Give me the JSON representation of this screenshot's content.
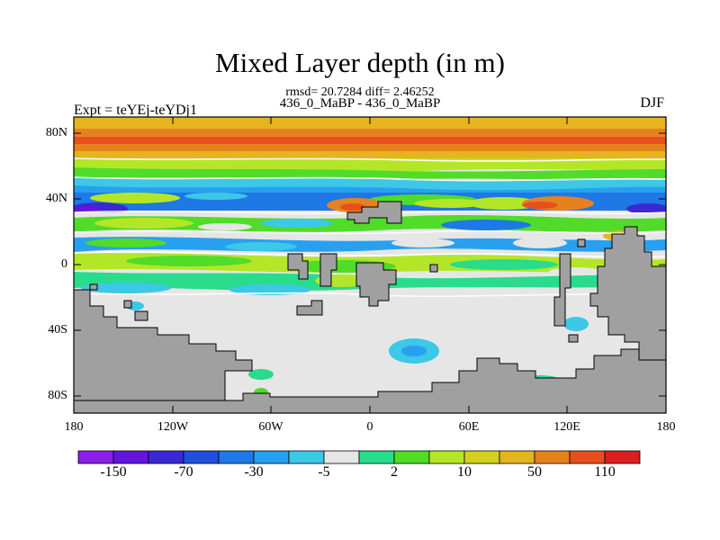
{
  "title": "Mixed Layer depth (in m)",
  "stats_line": "rmsd= 20.7284 diff= 2.46252",
  "comparison_line": "436_0_MaBP - 436_0_MaBP",
  "experiment_label": "Expt = teYEj-teYDj1",
  "season_label": "DJF",
  "map": {
    "lat_ticks": [
      "80N",
      "40N",
      "0",
      "40S",
      "80S"
    ],
    "lon_ticks": [
      "180",
      "120W",
      "60W",
      "0",
      "60E",
      "120E",
      "180"
    ],
    "land_color": "#a0a0a0",
    "lon_range": [
      -180,
      180
    ],
    "lat_range": [
      -90,
      90
    ]
  },
  "colorbar": {
    "colors": [
      "#8c1ee6",
      "#6414dc",
      "#3c28d2",
      "#1e50dc",
      "#1e78e6",
      "#28a0f0",
      "#3cc8e6",
      "#e6e6e6",
      "#28dc8c",
      "#50dc28",
      "#b4e628",
      "#d2d21e",
      "#e6b41e",
      "#e6821e",
      "#e6501e",
      "#dc1e1e"
    ],
    "labels": [
      "-150",
      "-70",
      "-30",
      "-5",
      "2",
      "10",
      "50",
      "110"
    ]
  }
}
